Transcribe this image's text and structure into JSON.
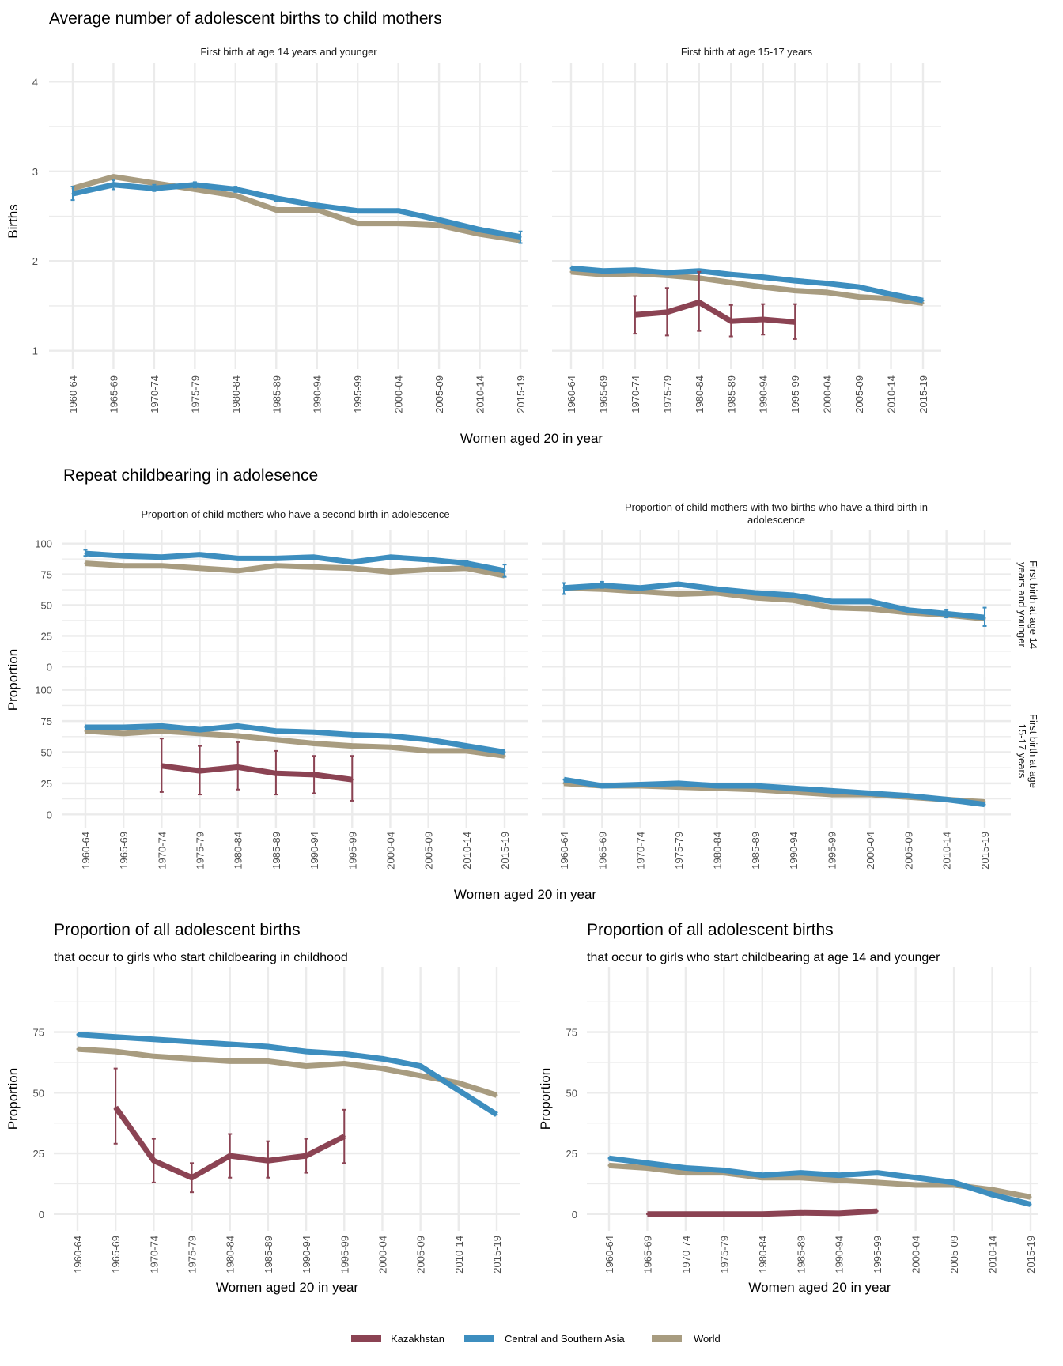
{
  "colors": {
    "Kazakhstan": "#8b4353",
    "Central and Southern Asia": "#3d8ebf",
    "World": "#a89c80",
    "grid": "#ebebeb"
  },
  "legend": {
    "items": [
      "Kazakhstan",
      "Central and Southern Asia",
      "World"
    ]
  },
  "section1": {
    "title": "Average number of adolescent births to child mothers",
    "xlabel": "Women aged 20 in year",
    "ylabel": "Births"
  },
  "section2": {
    "title": "Repeat childbearing in adolesence",
    "xlabel": "Women aged 20 in year",
    "ylabel": "Proportion"
  },
  "chart_data": [
    {
      "id": "births14",
      "type": "line",
      "section": 1,
      "title": "First birth at age 14 years and younger",
      "categories": [
        "1960-64",
        "1965-69",
        "1970-74",
        "1975-79",
        "1980-84",
        "1985-89",
        "1990-94",
        "1995-99",
        "2000-04",
        "2005-09",
        "2010-14",
        "2015-19"
      ],
      "ylim": [
        0.9,
        4.1
      ],
      "yticks": [
        1,
        2,
        3,
        4
      ],
      "ylabel": "Births",
      "xlabel": "Women aged 20 in year",
      "series": [
        {
          "name": "World",
          "values": [
            2.81,
            2.94,
            2.87,
            2.8,
            2.73,
            2.57,
            2.57,
            2.42,
            2.42,
            2.4,
            2.3,
            2.23
          ]
        },
        {
          "name": "Central and Southern Asia",
          "values": [
            2.75,
            2.85,
            2.81,
            2.85,
            2.8,
            2.7,
            2.62,
            2.56,
            2.56,
            2.46,
            2.35,
            2.27
          ],
          "err": [
            [
              2.68,
              2.83
            ],
            [
              2.8,
              2.9
            ],
            [
              2.78,
              2.85
            ],
            [
              2.82,
              2.88
            ],
            [
              2.77,
              2.83
            ],
            [
              2.67,
              2.72
            ],
            [
              2.6,
              2.64
            ],
            [
              2.54,
              2.58
            ],
            [
              2.54,
              2.58
            ],
            [
              2.44,
              2.48
            ],
            [
              2.33,
              2.37
            ],
            [
              2.2,
              2.33
            ]
          ]
        }
      ]
    },
    {
      "id": "births1517",
      "type": "line",
      "section": 1,
      "title": "First birth at age 15-17 years",
      "categories": [
        "1960-64",
        "1965-69",
        "1970-74",
        "1975-79",
        "1980-84",
        "1985-89",
        "1990-94",
        "1995-99",
        "2000-04",
        "2005-09",
        "2010-14",
        "2015-19"
      ],
      "ylim": [
        0.9,
        4.1
      ],
      "yticks": [
        1,
        2,
        3,
        4
      ],
      "series": [
        {
          "name": "World",
          "values": [
            1.88,
            1.85,
            1.86,
            1.84,
            1.81,
            1.76,
            1.71,
            1.67,
            1.65,
            1.6,
            1.58,
            1.53
          ]
        },
        {
          "name": "Central and Southern Asia",
          "values": [
            1.92,
            1.89,
            1.9,
            1.87,
            1.89,
            1.85,
            1.82,
            1.78,
            1.75,
            1.71,
            1.63,
            1.56
          ]
        },
        {
          "name": "Kazakhstan",
          "values": [
            null,
            null,
            1.4,
            1.43,
            1.54,
            1.33,
            1.35,
            1.32,
            null,
            null,
            null,
            null
          ],
          "err": [
            null,
            null,
            [
              1.19,
              1.61
            ],
            [
              1.17,
              1.7
            ],
            [
              1.22,
              1.88
            ],
            [
              1.16,
              1.51
            ],
            [
              1.18,
              1.52
            ],
            [
              1.13,
              1.52
            ],
            null,
            null,
            null,
            null
          ]
        }
      ]
    },
    {
      "id": "second14",
      "type": "line",
      "section": 2,
      "title": "Proportion of child mothers who have a second birth in adolescence",
      "strip": "First birth at age 14 years and younger",
      "categories": [
        "1960-64",
        "1965-69",
        "1970-74",
        "1975-79",
        "1980-84",
        "1985-89",
        "1990-94",
        "1995-99",
        "2000-04",
        "2005-09",
        "2010-14",
        "2015-19"
      ],
      "ylim": [
        -3,
        103
      ],
      "yticks": [
        0,
        25,
        50,
        75,
        100
      ],
      "series": [
        {
          "name": "World",
          "values": [
            84,
            82,
            82,
            80,
            78,
            82,
            81,
            80,
            77,
            79,
            80,
            74
          ]
        },
        {
          "name": "Central and Southern Asia",
          "values": [
            92,
            90,
            89,
            91,
            88,
            88,
            89,
            85,
            89,
            87,
            84,
            78
          ],
          "err": [
            [
              90,
              95
            ],
            null,
            null,
            null,
            null,
            null,
            null,
            null,
            null,
            null,
            [
              82,
              86
            ],
            [
              73,
              83
            ]
          ]
        }
      ]
    },
    {
      "id": "third14",
      "type": "line",
      "section": 2,
      "title": "Proportion of child mothers with two births who have a third birth in adolescence",
      "strip": "First birth at age 14 years and younger",
      "categories": [
        "1960-64",
        "1965-69",
        "1970-74",
        "1975-79",
        "1980-84",
        "1985-89",
        "1990-94",
        "1995-99",
        "2000-04",
        "2005-09",
        "2010-14",
        "2015-19"
      ],
      "ylim": [
        -3,
        103
      ],
      "yticks": [
        0,
        25,
        50,
        75,
        100
      ],
      "series": [
        {
          "name": "World",
          "values": [
            64,
            63,
            61,
            59,
            60,
            56,
            54,
            48,
            47,
            44,
            42,
            39
          ]
        },
        {
          "name": "Central and Southern Asia",
          "values": [
            64,
            66,
            64,
            67,
            63,
            60,
            58,
            53,
            53,
            46,
            43,
            40
          ],
          "err": [
            [
              59,
              68
            ],
            [
              64,
              69
            ],
            null,
            null,
            null,
            null,
            null,
            null,
            null,
            null,
            [
              40,
              46
            ],
            [
              33,
              48
            ]
          ]
        }
      ]
    },
    {
      "id": "second1517",
      "type": "line",
      "section": 2,
      "strip": "First birth at age 15-17 years",
      "categories": [
        "1960-64",
        "1965-69",
        "1970-74",
        "1975-79",
        "1980-84",
        "1985-89",
        "1990-94",
        "1995-99",
        "2000-04",
        "2005-09",
        "2010-14",
        "2015-19"
      ],
      "ylim": [
        -3,
        103
      ],
      "yticks": [
        0,
        25,
        50,
        75,
        100
      ],
      "series": [
        {
          "name": "World",
          "values": [
            67,
            65,
            67,
            65,
            63,
            60,
            57,
            55,
            54,
            51,
            51,
            47
          ]
        },
        {
          "name": "Central and Southern Asia",
          "values": [
            70,
            70,
            71,
            68,
            71,
            67,
            66,
            64,
            63,
            60,
            55,
            50
          ]
        },
        {
          "name": "Kazakhstan",
          "values": [
            null,
            null,
            39,
            35,
            38,
            33,
            32,
            28,
            null,
            null,
            null,
            null
          ],
          "err": [
            null,
            null,
            [
              18,
              61
            ],
            [
              16,
              55
            ],
            [
              20,
              58
            ],
            [
              16,
              51
            ],
            [
              17,
              47
            ],
            [
              11,
              47
            ],
            null,
            null,
            null,
            null
          ]
        }
      ]
    },
    {
      "id": "third1517",
      "type": "line",
      "section": 2,
      "strip": "First birth at age 15-17 years",
      "categories": [
        "1960-64",
        "1965-69",
        "1970-74",
        "1975-79",
        "1980-84",
        "1985-89",
        "1990-94",
        "1995-99",
        "2000-04",
        "2005-09",
        "2010-14",
        "2015-19"
      ],
      "ylim": [
        -3,
        103
      ],
      "yticks": [
        0,
        25,
        50,
        75,
        100
      ],
      "series": [
        {
          "name": "World",
          "values": [
            25,
            23,
            23,
            22,
            21,
            20,
            18,
            16,
            16,
            14,
            12,
            10
          ]
        },
        {
          "name": "Central and Southern Asia",
          "values": [
            28,
            23,
            24,
            25,
            23,
            23,
            21,
            19,
            17,
            15,
            12,
            8
          ]
        }
      ]
    },
    {
      "id": "propChild",
      "type": "line",
      "section": 3,
      "title": "Proportion of all adolescent births",
      "subtitle": "that occur to girls who start childbearing in childhood",
      "xlabel": "Women aged 20 in year",
      "ylabel": "Proportion",
      "categories": [
        "1960-64",
        "1965-69",
        "1970-74",
        "1975-79",
        "1980-84",
        "1985-89",
        "1990-94",
        "1995-99",
        "2000-04",
        "2005-09",
        "2010-14",
        "2015-19"
      ],
      "ylim": [
        -3,
        98
      ],
      "yticks": [
        0,
        25,
        50,
        75
      ],
      "series": [
        {
          "name": "World",
          "values": [
            68,
            67,
            65,
            64,
            63,
            63,
            61,
            62,
            60,
            57,
            54,
            49
          ]
        },
        {
          "name": "Central and Southern Asia",
          "values": [
            74,
            73,
            72,
            71,
            70,
            69,
            67,
            66,
            64,
            61,
            51,
            41
          ]
        },
        {
          "name": "Kazakhstan",
          "values": [
            null,
            44,
            22,
            15,
            24,
            22,
            24,
            32,
            null,
            null,
            null,
            null
          ],
          "err": [
            null,
            [
              29,
              60
            ],
            [
              13,
              31
            ],
            [
              9,
              21
            ],
            [
              15,
              33
            ],
            [
              15,
              30
            ],
            [
              17,
              31
            ],
            [
              21,
              43
            ],
            null,
            null,
            null,
            null
          ]
        }
      ]
    },
    {
      "id": "prop14",
      "type": "line",
      "section": 3,
      "title": "Proportion of all adolescent births",
      "subtitle": "that occur to girls who start childbearing at age 14 and younger",
      "xlabel": "Women aged 20 in year",
      "ylabel": "Proportion",
      "categories": [
        "1960-64",
        "1965-69",
        "1970-74",
        "1975-79",
        "1980-84",
        "1985-89",
        "1990-94",
        "1995-99",
        "2000-04",
        "2005-09",
        "2010-14",
        "2015-19"
      ],
      "ylim": [
        -3,
        98
      ],
      "yticks": [
        0,
        25,
        50,
        75
      ],
      "series": [
        {
          "name": "World",
          "values": [
            20,
            19,
            17,
            17,
            15,
            15,
            14,
            13,
            12,
            12,
            10,
            7
          ]
        },
        {
          "name": "Central and Southern Asia",
          "values": [
            23,
            21,
            19,
            18,
            16,
            17,
            16,
            17,
            15,
            13,
            8,
            4
          ]
        },
        {
          "name": "Kazakhstan",
          "values": [
            null,
            0,
            0,
            0,
            0,
            0.5,
            0.3,
            1.2,
            null,
            null,
            null,
            null
          ]
        }
      ]
    }
  ]
}
